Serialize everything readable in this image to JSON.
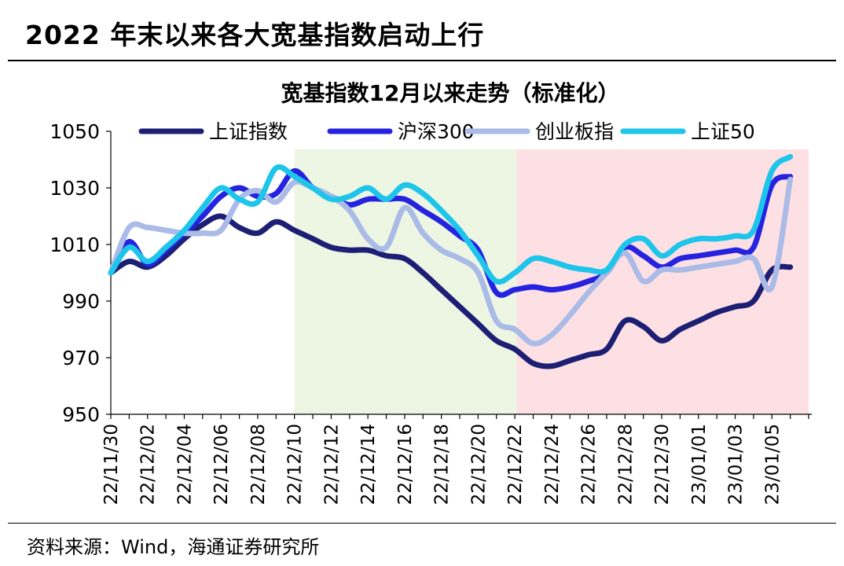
{
  "page": {
    "heading": "2022 年末以来各大宽基指数启动上行",
    "source": "资料来源：Wind，海通证券研究所"
  },
  "chart_data": {
    "type": "line",
    "title": "宽基指数12月以来走势（标准化）",
    "xlabel": "",
    "ylabel": "",
    "ylim": [
      950,
      1050
    ],
    "yticks": [
      "950",
      "970",
      "990",
      "1010",
      "1030",
      "1050"
    ],
    "x_ticks": [
      "22/11/30",
      "22/12/02",
      "22/12/04",
      "22/12/06",
      "22/12/08",
      "22/12/10",
      "22/12/12",
      "22/12/14",
      "22/12/16",
      "22/12/18",
      "22/12/20",
      "22/12/22",
      "22/12/24",
      "22/12/26",
      "22/12/28",
      "22/12/30",
      "23/01/01",
      "23/01/03",
      "23/01/05"
    ],
    "x_range": [
      0,
      38
    ],
    "legend_position": "top",
    "shaded_regions": [
      {
        "from": 10,
        "to": 22.1,
        "color": "#edf5e3"
      },
      {
        "from": 22.1,
        "to": 38,
        "color": "#fde0e3"
      }
    ],
    "series": [
      {
        "name": "上证指数",
        "color": "#1d1f75",
        "width": 7,
        "x": [
          0,
          1,
          2,
          3,
          4,
          5,
          6,
          7,
          8,
          9,
          10,
          11,
          12,
          13,
          14,
          15,
          16,
          17,
          18,
          19,
          20,
          21,
          22,
          23,
          24,
          25,
          26,
          27,
          28,
          29,
          30,
          31,
          32,
          33,
          34,
          35,
          36,
          37
        ],
        "y": [
          1000,
          1004,
          1002,
          1006,
          1012,
          1017,
          1020,
          1016,
          1014,
          1018,
          1015,
          1012,
          1009,
          1008,
          1008,
          1006,
          1005,
          1000,
          994,
          988,
          982,
          976,
          973,
          968,
          967,
          969,
          971,
          973,
          983,
          981,
          976,
          980,
          983,
          986,
          988,
          990,
          1001,
          1002
        ]
      },
      {
        "name": "沪深300",
        "color": "#2623e0",
        "width": 7,
        "x": [
          0,
          1,
          2,
          3,
          4,
          5,
          6,
          7,
          8,
          9,
          10,
          11,
          12,
          13,
          14,
          15,
          16,
          17,
          18,
          19,
          20,
          21,
          22,
          23,
          24,
          25,
          26,
          27,
          28,
          29,
          30,
          31,
          32,
          33,
          34,
          35,
          36,
          37
        ],
        "y": [
          1000,
          1011,
          1003,
          1008,
          1014,
          1020,
          1027,
          1030,
          1027,
          1028,
          1036,
          1030,
          1027,
          1024,
          1026,
          1026,
          1026,
          1022,
          1018,
          1013,
          1008,
          993,
          994,
          995,
          994,
          995,
          997,
          1000,
          1009,
          1006,
          1002,
          1005,
          1006,
          1007,
          1008,
          1009,
          1031,
          1034
        ]
      },
      {
        "name": "创业板指",
        "color": "#a9bbe6",
        "width": 7,
        "x": [
          0,
          1,
          2,
          3,
          4,
          5,
          6,
          7,
          8,
          9,
          10,
          11,
          12,
          13,
          14,
          15,
          16,
          17,
          18,
          19,
          20,
          21,
          22,
          23,
          24,
          25,
          26,
          27,
          28,
          29,
          30,
          31,
          32,
          33,
          34,
          35,
          36,
          37
        ],
        "y": [
          1000,
          1016,
          1016,
          1015,
          1014,
          1014,
          1015,
          1026,
          1029,
          1025,
          1032,
          1030,
          1027,
          1022,
          1012,
          1009,
          1023,
          1014,
          1008,
          1005,
          1000,
          983,
          980,
          975,
          978,
          985,
          993,
          1000,
          1007,
          997,
          1001,
          1001,
          1002,
          1003,
          1004,
          1005,
          995,
          1033
        ]
      },
      {
        "name": "上证50",
        "color": "#1ec5ea",
        "width": 7,
        "x": [
          0,
          1,
          2,
          3,
          4,
          5,
          6,
          7,
          8,
          9,
          10,
          11,
          12,
          13,
          14,
          15,
          16,
          17,
          18,
          19,
          20,
          21,
          22,
          23,
          24,
          25,
          26,
          27,
          28,
          29,
          30,
          31,
          32,
          33,
          34,
          35,
          36,
          37
        ],
        "y": [
          1000,
          1009,
          1004,
          1009,
          1015,
          1023,
          1030,
          1026,
          1025,
          1037,
          1034,
          1030,
          1026,
          1027,
          1030,
          1026,
          1031,
          1028,
          1022,
          1015,
          1006,
          997,
          1000,
          1005,
          1004,
          1002,
          1001,
          1001,
          1010,
          1012,
          1006,
          1010,
          1012,
          1012,
          1013,
          1015,
          1036,
          1041
        ]
      }
    ]
  }
}
